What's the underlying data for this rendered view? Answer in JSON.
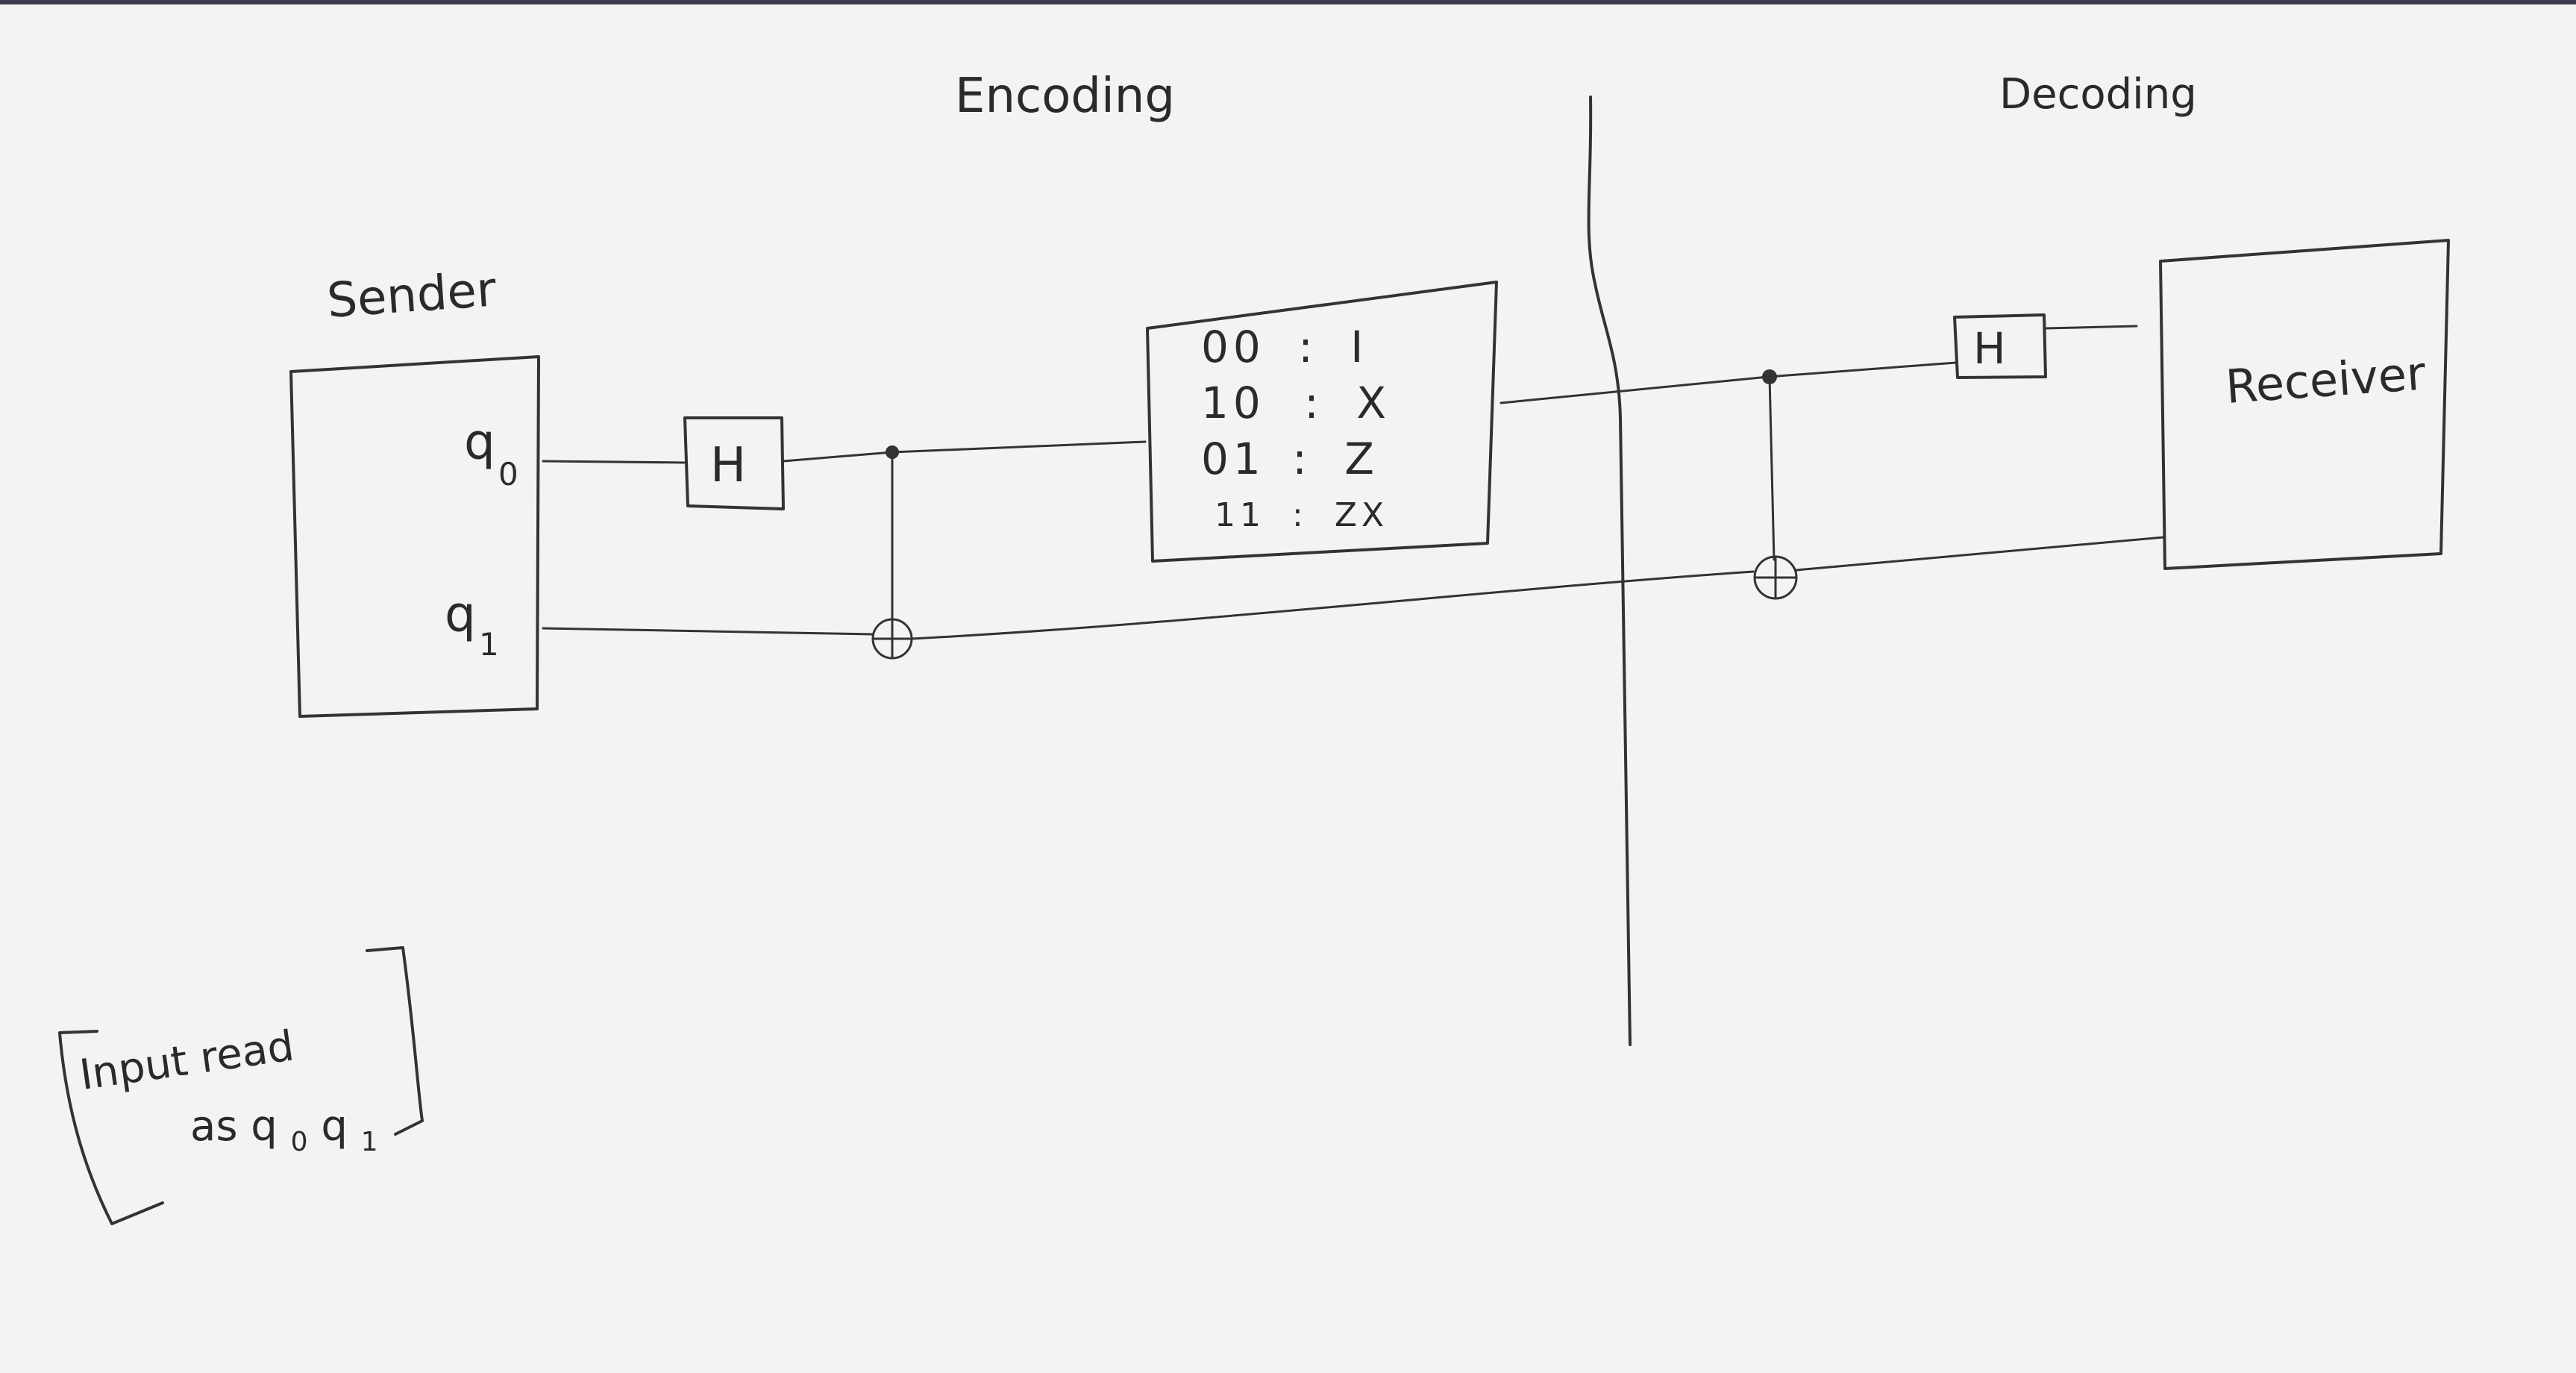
{
  "sections": {
    "encoding_title": "Encoding",
    "decoding_title": "Decoding"
  },
  "sender": {
    "title": "Sender",
    "qubit0": "q",
    "qubit0_sub": "0",
    "qubit1": "q",
    "qubit1_sub": "1"
  },
  "gates": {
    "sender_h": "H",
    "receiver_h": "H"
  },
  "encoding_map": {
    "rows": [
      {
        "bits": "00",
        "sep": ":",
        "op": "I"
      },
      {
        "bits": "10",
        "sep": ":",
        "op": "X"
      },
      {
        "bits": "01",
        "sep": ":",
        "op": "Z"
      },
      {
        "bits": "11",
        "sep": ":",
        "op": "ZX"
      }
    ]
  },
  "receiver": {
    "title": "Receiver"
  },
  "note": {
    "line1": "Input read",
    "line2": "as q",
    "q0_sub": "0",
    "q1": "q",
    "q1_sub": "1"
  },
  "colors": {
    "paper": "#f3f3f1",
    "ink": "#333333"
  }
}
